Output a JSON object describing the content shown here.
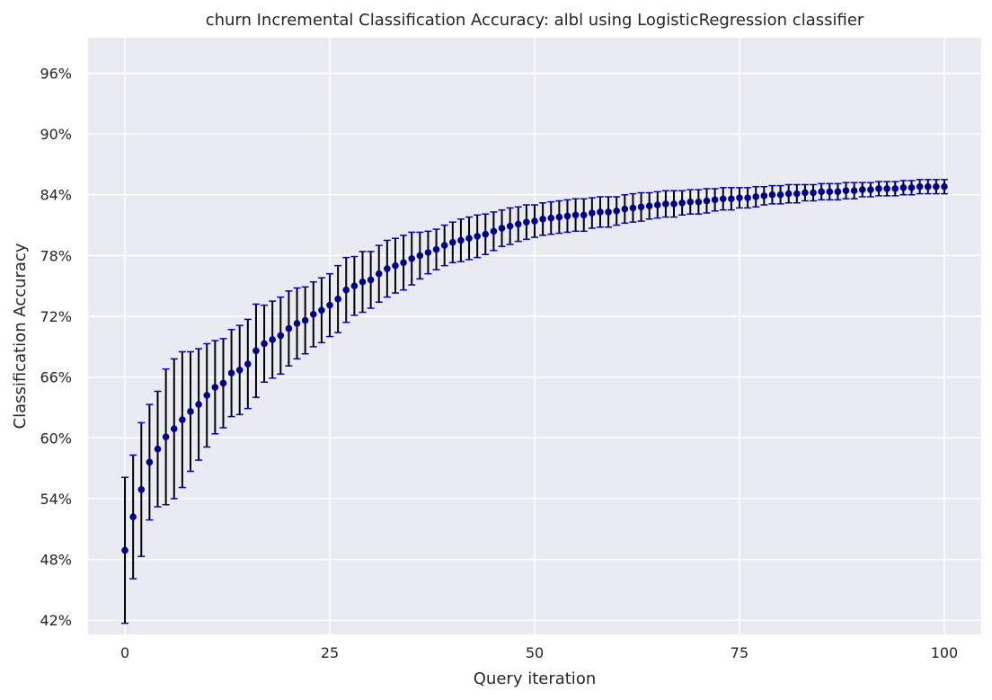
{
  "chart_data": {
    "type": "scatter",
    "title": "churn Incremental Classification Accuracy: albl using LogisticRegression classifier",
    "xlabel": "Query iteration",
    "ylabel": "Classification Accuracy",
    "xlim": [
      -4.5,
      104.5
    ],
    "ylim": [
      0.406,
      0.995
    ],
    "xticks": [
      0,
      25,
      50,
      75,
      100
    ],
    "yticks": [
      0.42,
      0.48,
      0.54,
      0.6,
      0.66,
      0.72,
      0.78,
      0.84,
      0.9,
      0.96
    ],
    "ytick_labels": [
      "42%",
      "48%",
      "54%",
      "60%",
      "66%",
      "72%",
      "78%",
      "84%",
      "90%",
      "96%"
    ],
    "grid": true,
    "colors": {
      "background": "#eaeaf2",
      "grid": "#ffffff",
      "marker": "#00008b",
      "errorbar": "#000000",
      "cap": "#0000cd"
    },
    "series": [
      {
        "x": [
          0,
          1,
          2,
          3,
          4,
          5,
          6,
          7,
          8,
          9,
          10,
          11,
          12,
          13,
          14,
          15,
          16,
          17,
          18,
          19,
          20,
          21,
          22,
          23,
          24,
          25,
          26,
          27,
          28,
          29,
          30,
          31,
          32,
          33,
          34,
          35,
          36,
          37,
          38,
          39,
          40,
          41,
          42,
          43,
          44,
          45,
          46,
          47,
          48,
          49,
          50,
          51,
          52,
          53,
          54,
          55,
          56,
          57,
          58,
          59,
          60,
          61,
          62,
          63,
          64,
          65,
          66,
          67,
          68,
          69,
          70,
          71,
          72,
          73,
          74,
          75,
          76,
          77,
          78,
          79,
          80,
          81,
          82,
          83,
          84,
          85,
          86,
          87,
          88,
          89,
          90,
          91,
          92,
          93,
          94,
          95,
          96,
          97,
          98,
          99,
          100
        ],
        "y": [
          0.489,
          0.522,
          0.549,
          0.576,
          0.589,
          0.601,
          0.609,
          0.618,
          0.626,
          0.633,
          0.642,
          0.65,
          0.654,
          0.664,
          0.667,
          0.673,
          0.686,
          0.693,
          0.697,
          0.701,
          0.708,
          0.713,
          0.716,
          0.722,
          0.726,
          0.731,
          0.737,
          0.746,
          0.75,
          0.754,
          0.756,
          0.762,
          0.767,
          0.77,
          0.773,
          0.777,
          0.78,
          0.783,
          0.786,
          0.79,
          0.793,
          0.795,
          0.797,
          0.799,
          0.801,
          0.804,
          0.807,
          0.809,
          0.811,
          0.813,
          0.814,
          0.816,
          0.817,
          0.818,
          0.819,
          0.82,
          0.82,
          0.822,
          0.823,
          0.823,
          0.824,
          0.826,
          0.827,
          0.828,
          0.829,
          0.83,
          0.831,
          0.831,
          0.832,
          0.833,
          0.833,
          0.834,
          0.835,
          0.836,
          0.836,
          0.837,
          0.837,
          0.838,
          0.839,
          0.84,
          0.84,
          0.841,
          0.841,
          0.842,
          0.842,
          0.843,
          0.843,
          0.843,
          0.844,
          0.844,
          0.845,
          0.845,
          0.846,
          0.846,
          0.846,
          0.847,
          0.847,
          0.848,
          0.848,
          0.848,
          0.848
        ],
        "err": [
          0.072,
          0.061,
          0.066,
          0.057,
          0.057,
          0.067,
          0.069,
          0.067,
          0.059,
          0.055,
          0.051,
          0.046,
          0.044,
          0.043,
          0.044,
          0.044,
          0.046,
          0.038,
          0.038,
          0.038,
          0.037,
          0.035,
          0.033,
          0.032,
          0.032,
          0.031,
          0.033,
          0.032,
          0.029,
          0.03,
          0.028,
          0.028,
          0.028,
          0.027,
          0.027,
          0.026,
          0.023,
          0.021,
          0.02,
          0.02,
          0.02,
          0.021,
          0.021,
          0.021,
          0.02,
          0.019,
          0.018,
          0.018,
          0.017,
          0.017,
          0.016,
          0.016,
          0.016,
          0.016,
          0.016,
          0.016,
          0.016,
          0.015,
          0.015,
          0.015,
          0.014,
          0.014,
          0.014,
          0.014,
          0.013,
          0.013,
          0.013,
          0.013,
          0.012,
          0.012,
          0.012,
          0.012,
          0.011,
          0.011,
          0.011,
          0.01,
          0.01,
          0.01,
          0.009,
          0.009,
          0.009,
          0.009,
          0.009,
          0.008,
          0.008,
          0.008,
          0.008,
          0.008,
          0.008,
          0.008,
          0.007,
          0.007,
          0.007,
          0.007,
          0.007,
          0.007,
          0.007,
          0.007,
          0.007,
          0.007,
          0.007
        ]
      }
    ]
  }
}
